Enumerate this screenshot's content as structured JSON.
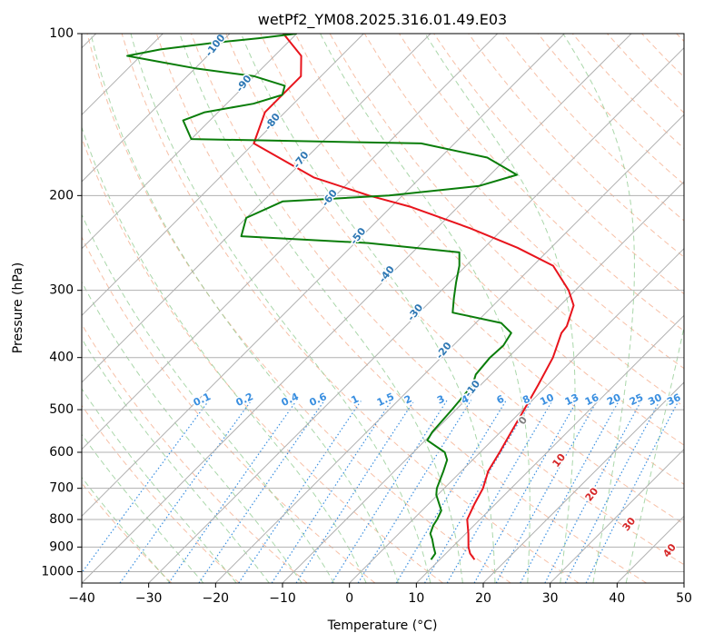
{
  "chart_data": {
    "type": "line",
    "title": "wetPf2_YM08.2025.316.01.49.E03",
    "xlabel": "Temperature (°C)",
    "ylabel": "Pressure (hPa)",
    "xlim": [
      -40,
      50
    ],
    "ylim": [
      1050,
      100
    ],
    "y_scale": "log",
    "grid": true,
    "x_ticks": [
      -40,
      -30,
      -20,
      -10,
      0,
      10,
      20,
      30,
      40,
      50
    ],
    "y_ticks": [
      100,
      200,
      300,
      400,
      500,
      600,
      700,
      800,
      900,
      1000
    ],
    "colors": {
      "temperature": "#e8141c",
      "dewpoint": "#0a7d0a",
      "grid": "#b0b0b0",
      "dry_adiabats": "#f4a582",
      "moist_adiabats": "#8dc98d",
      "mixing_ratio": "#3a8fe0",
      "dry_label": "#d62728",
      "moist_label": "#2e78b4",
      "mixing_label": "#3a8fe0"
    },
    "series": [
      {
        "key": "temperature",
        "points": [
          [
            15.2,
            950
          ],
          [
            13.6,
            925
          ],
          [
            12.4,
            900
          ],
          [
            10.4,
            850
          ],
          [
            8.1,
            800
          ],
          [
            6.9,
            750
          ],
          [
            5.8,
            700
          ],
          [
            4.0,
            650
          ],
          [
            2.9,
            600
          ],
          [
            1.6,
            550
          ],
          [
            0.2,
            500
          ],
          [
            -1.4,
            450
          ],
          [
            -3.3,
            400
          ],
          [
            -5.7,
            360
          ],
          [
            -5.9,
            350
          ],
          [
            -8.0,
            320
          ],
          [
            -11.0,
            300
          ],
          [
            -17.0,
            270
          ],
          [
            -25.0,
            250
          ],
          [
            -35.0,
            230
          ],
          [
            -47.0,
            210
          ],
          [
            -55.0,
            200
          ],
          [
            -66.0,
            185
          ],
          [
            -80.0,
            160
          ],
          [
            -83.0,
            140
          ],
          [
            -83.0,
            120
          ],
          [
            -86.0,
            110
          ],
          [
            -92.0,
            100
          ]
        ]
      },
      {
        "key": "dewpoint",
        "points": [
          [
            8.7,
            950
          ],
          [
            8.4,
            925
          ],
          [
            7.2,
            900
          ],
          [
            5.8,
            870
          ],
          [
            4.7,
            850
          ],
          [
            3.9,
            820
          ],
          [
            3.6,
            800
          ],
          [
            2.9,
            770
          ],
          [
            -0.2,
            720
          ],
          [
            -1.1,
            700
          ],
          [
            -2.7,
            650
          ],
          [
            -3.8,
            620
          ],
          [
            -5.3,
            600
          ],
          [
            -9.7,
            570
          ],
          [
            -10.2,
            550
          ],
          [
            -10.6,
            500
          ],
          [
            -11.2,
            450
          ],
          [
            -12.3,
            430
          ],
          [
            -12.7,
            400
          ],
          [
            -12.5,
            380
          ],
          [
            -13.2,
            360
          ],
          [
            -16.2,
            345
          ],
          [
            -25.0,
            330
          ],
          [
            -27.0,
            310
          ],
          [
            -29.0,
            290
          ],
          [
            -31.0,
            270
          ],
          [
            -33.0,
            255
          ],
          [
            -48.0,
            245
          ],
          [
            -68.0,
            238
          ],
          [
            -70.0,
            220
          ],
          [
            -67.0,
            205
          ],
          [
            -52.0,
            200
          ],
          [
            -40.0,
            192
          ],
          [
            -36.0,
            183
          ],
          [
            -43.0,
            170
          ],
          [
            -55.0,
            160
          ],
          [
            -90.0,
            157
          ],
          [
            -94.0,
            145
          ],
          [
            -92.0,
            140
          ],
          [
            -86.0,
            135
          ],
          [
            -83.0,
            130
          ],
          [
            -84.0,
            125
          ],
          [
            -90.0,
            120
          ],
          [
            -100.0,
            116
          ],
          [
            -106.0,
            113
          ],
          [
            -112.0,
            110
          ],
          [
            -108.0,
            107
          ],
          [
            -101.0,
            104
          ],
          [
            -95.0,
            102
          ],
          [
            -90.0,
            100
          ]
        ]
      }
    ],
    "dry_adiabat_labels": [
      "0",
      "10",
      "20",
      "30",
      "40"
    ],
    "moist_adiabat_labels": [
      "-100",
      "-90",
      "-80",
      "-70",
      "-60",
      "-50",
      "-40",
      "-30",
      "-20",
      "-10"
    ],
    "mixing_ratio_labels": [
      "0.1",
      "0.2",
      "0.4",
      "0.6",
      "1",
      "1.5",
      "2",
      "3",
      "4",
      "6",
      "8",
      "10",
      "13",
      "16",
      "20",
      "25",
      "30",
      "36"
    ]
  }
}
